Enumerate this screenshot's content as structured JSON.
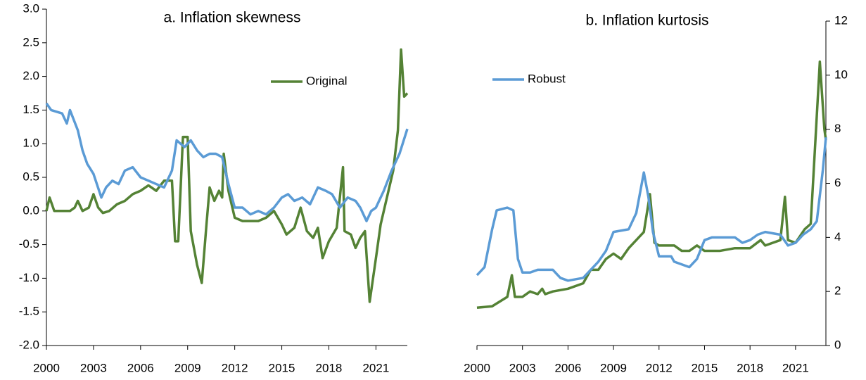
{
  "chart_data": [
    {
      "type": "line",
      "title": "a. Inflation skewness",
      "xlim": [
        2000,
        2023
      ],
      "xticks": [
        2000,
        2003,
        2006,
        2009,
        2012,
        2015,
        2018,
        2021
      ],
      "ylim": [
        -2,
        3
      ],
      "yticks": [
        {
          "value": -2,
          "label": "-2.0"
        },
        {
          "value": -1.5,
          "label": "-1.5"
        },
        {
          "value": -1,
          "label": "-1.0"
        },
        {
          "value": -0.5,
          "label": "-0.5"
        },
        {
          "value": 0,
          "label": "0.0"
        },
        0.5,
        {
          "value": 1,
          "label": "1.0"
        },
        1.5,
        {
          "value": 2,
          "label": "2.0"
        },
        2.5,
        {
          "value": 3,
          "label": "3.0"
        }
      ],
      "y_axis_side": "left",
      "series": [
        {
          "name": "Original",
          "color": "#548235",
          "x": [
            2000,
            2000.2,
            2000.5,
            2001,
            2001.5,
            2001.8,
            2002,
            2002.3,
            2002.7,
            2003,
            2003.3,
            2003.6,
            2004,
            2004.5,
            2005,
            2005.5,
            2006,
            2006.5,
            2007,
            2007.5,
            2008,
            2008.2,
            2008.4,
            2008.7,
            2009,
            2009.2,
            2009.6,
            2009.9,
            2010.2,
            2010.4,
            2010.7,
            2011,
            2011.2,
            2011.3,
            2011.6,
            2012,
            2012.5,
            2013.5,
            2014,
            2014.5,
            2015,
            2015.3,
            2015.8,
            2016.2,
            2016.6,
            2017,
            2017.3,
            2017.6,
            2018,
            2018.5,
            2018.9,
            2019,
            2019.4,
            2019.7,
            2020,
            2020.3,
            2020.6,
            2021,
            2021.3,
            2021.8,
            2022.1,
            2022.4,
            2022.6,
            2022.8,
            2023
          ],
          "values": [
            0.0,
            0.2,
            0.0,
            0.0,
            0.0,
            0.05,
            0.15,
            0.0,
            0.05,
            0.25,
            0.05,
            -0.03,
            0.0,
            0.1,
            0.15,
            0.25,
            0.3,
            0.38,
            0.3,
            0.45,
            0.45,
            -0.45,
            -0.45,
            1.1,
            1.1,
            -0.3,
            -0.8,
            -1.07,
            -0.2,
            0.35,
            0.15,
            0.3,
            0.2,
            0.85,
            0.3,
            -0.1,
            -0.15,
            -0.15,
            -0.1,
            0.0,
            -0.2,
            -0.35,
            -0.25,
            0.05,
            -0.3,
            -0.4,
            -0.25,
            -0.7,
            -0.45,
            -0.25,
            0.65,
            -0.3,
            -0.35,
            -0.55,
            -0.4,
            -0.3,
            -1.35,
            -0.7,
            -0.2,
            0.3,
            0.6,
            1.2,
            2.4,
            1.7,
            1.75
          ]
        },
        {
          "color": "#5b9bd5",
          "x": [
            2000,
            2000.3,
            2001,
            2001.3,
            2001.5,
            2002,
            2002.3,
            2002.6,
            2003,
            2003.5,
            2003.8,
            2004.2,
            2004.6,
            2005,
            2005.5,
            2006,
            2006.5,
            2007,
            2007.5,
            2008,
            2008.3,
            2008.8,
            2009.2,
            2009.6,
            2010,
            2010.4,
            2010.8,
            2011.2,
            2011.6,
            2012,
            2012.5,
            2013,
            2013.5,
            2014,
            2014.5,
            2015,
            2015.4,
            2015.8,
            2016.3,
            2016.8,
            2017.3,
            2017.8,
            2018.2,
            2018.7,
            2019.2,
            2019.7,
            2020,
            2020.4,
            2020.7,
            2021,
            2021.5,
            2022,
            2022.5,
            2023
          ],
          "values": [
            1.6,
            1.5,
            1.45,
            1.3,
            1.5,
            1.2,
            0.9,
            0.7,
            0.55,
            0.2,
            0.35,
            0.45,
            0.4,
            0.6,
            0.65,
            0.5,
            0.45,
            0.4,
            0.35,
            0.6,
            1.05,
            0.95,
            1.05,
            0.9,
            0.8,
            0.85,
            0.85,
            0.8,
            0.4,
            0.05,
            0.05,
            -0.05,
            0.0,
            -0.05,
            0.05,
            0.2,
            0.25,
            0.15,
            0.2,
            0.1,
            0.35,
            0.3,
            0.25,
            0.05,
            0.2,
            0.15,
            0.05,
            -0.15,
            0.0,
            0.05,
            0.3,
            0.6,
            0.85,
            1.22
          ]
        }
      ]
    },
    {
      "type": "line",
      "title": "b. Inflation kurtosis",
      "xlim": [
        2000,
        2023
      ],
      "xticks": [
        2000,
        2003,
        2006,
        2009,
        2012,
        2015,
        2018,
        2021
      ],
      "ylim": [
        0,
        12
      ],
      "yticks": [
        0,
        2,
        4,
        6,
        8,
        10,
        12
      ],
      "y_axis_side": "right",
      "series": [
        {
          "color": "#548235",
          "x": [
            2000,
            2001,
            2002,
            2002.3,
            2002.5,
            2003,
            2003.5,
            2004,
            2004.3,
            2004.5,
            2005,
            2006,
            2007,
            2007.5,
            2008,
            2008.5,
            2009,
            2009.5,
            2010,
            2010.5,
            2011,
            2011.4,
            2011.7,
            2012,
            2013,
            2013.5,
            2014,
            2014.5,
            2015,
            2016,
            2017,
            2018,
            2018.7,
            2019,
            2020,
            2020.3,
            2020.5,
            2021,
            2021.6,
            2022,
            2022.6,
            2022.9,
            2023
          ],
          "values": [
            1.4,
            1.45,
            1.8,
            2.6,
            1.8,
            1.8,
            2.0,
            1.9,
            2.1,
            1.9,
            2.0,
            2.1,
            2.3,
            2.8,
            2.8,
            3.2,
            3.4,
            3.2,
            3.6,
            3.9,
            4.2,
            5.6,
            3.8,
            3.7,
            3.7,
            3.5,
            3.5,
            3.7,
            3.5,
            3.5,
            3.6,
            3.6,
            3.9,
            3.7,
            3.9,
            5.5,
            3.9,
            3.8,
            4.3,
            4.5,
            10.5,
            8.0,
            7.6
          ]
        },
        {
          "name": "Robust",
          "color": "#5b9bd5",
          "x": [
            2000,
            2000.5,
            2001,
            2001.3,
            2002,
            2002.4,
            2002.7,
            2003,
            2003.5,
            2004,
            2004.5,
            2005,
            2005.5,
            2006,
            2007,
            2008,
            2008.5,
            2009,
            2010,
            2010.5,
            2011,
            2011.3,
            2011.6,
            2012,
            2012.8,
            2013,
            2014,
            2014.5,
            2015,
            2015.5,
            2016,
            2017,
            2017.5,
            2018,
            2018.5,
            2019,
            2020,
            2020.5,
            2021,
            2021.5,
            2022,
            2022.4,
            2022.8,
            2023
          ],
          "values": [
            2.6,
            2.9,
            4.3,
            5.0,
            5.1,
            5.0,
            3.2,
            2.7,
            2.7,
            2.8,
            2.8,
            2.8,
            2.5,
            2.4,
            2.5,
            3.1,
            3.5,
            4.2,
            4.3,
            4.9,
            6.4,
            5.5,
            4.2,
            3.3,
            3.3,
            3.1,
            2.9,
            3.2,
            3.9,
            4.0,
            4.0,
            4.0,
            3.8,
            3.9,
            4.1,
            4.2,
            4.1,
            3.7,
            3.8,
            4.1,
            4.3,
            4.6,
            6.5,
            7.7
          ]
        }
      ]
    }
  ]
}
